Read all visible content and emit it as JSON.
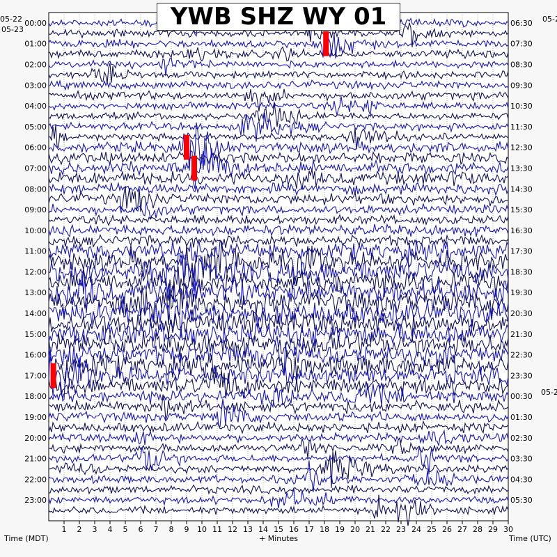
{
  "chart_data": {
    "type": "helicorder",
    "title": "YWB SHZ WY 01",
    "xlabel": "+ Minutes",
    "xlim": [
      0,
      30
    ],
    "x_ticks": [
      "1",
      "2",
      "3",
      "4",
      "5",
      "6",
      "7",
      "8",
      "9",
      "10",
      "11",
      "12",
      "13",
      "14",
      "15",
      "16",
      "17",
      "18",
      "19",
      "20",
      "21",
      "22",
      "23",
      "24",
      "25",
      "26",
      "27",
      "28",
      "29",
      "30"
    ],
    "left_axis_label": "Time (MDT)",
    "right_axis_label": "Time (UTC)",
    "left_dates": [
      "05-22",
      "05-23"
    ],
    "right_dates": [
      "05-2",
      "05-2"
    ],
    "left_hours": [
      "00:00",
      "01:00",
      "02:00",
      "03:00",
      "04:00",
      "05:00",
      "06:00",
      "07:00",
      "08:00",
      "09:00",
      "10:00",
      "11:00",
      "12:00",
      "13:00",
      "14:00",
      "15:00",
      "16:00",
      "17:00",
      "18:00",
      "19:00",
      "20:00",
      "21:00",
      "22:00",
      "23:00"
    ],
    "right_hours": [
      "06:30",
      "07:30",
      "08:30",
      "09:30",
      "10:30",
      "11:30",
      "12:30",
      "13:30",
      "14:30",
      "15:30",
      "16:30",
      "17:30",
      "18:30",
      "19:30",
      "20:30",
      "21:30",
      "22:30",
      "23:30",
      "00:30",
      "01:30",
      "02:30",
      "03:30",
      "04:30",
      "05:30"
    ],
    "trace_colors": [
      "#1515cc",
      "#10105a"
    ],
    "clip_color": "#ff0000",
    "traces_per_hour": 2,
    "grid": true,
    "activity_levels_by_hour": [
      1,
      1.2,
      1,
      1.3,
      1,
      1.1,
      2.2,
      2.8,
      2.2,
      1.6,
      2.2,
      4.5,
      6,
      6,
      6,
      6,
      5,
      4,
      2.6,
      1.8,
      1.4,
      1.2,
      1.2,
      1.1
    ],
    "events": [
      {
        "hour": "01:00",
        "minute": 18.1,
        "description": "spike"
      },
      {
        "hour": "06:00",
        "minute": 9.0,
        "description": "large clipped event"
      },
      {
        "hour": "07:00",
        "minute": 9.5,
        "description": "large clipped event"
      },
      {
        "hour": "17:00",
        "minute": 0.3,
        "description": "clipped event"
      }
    ]
  }
}
